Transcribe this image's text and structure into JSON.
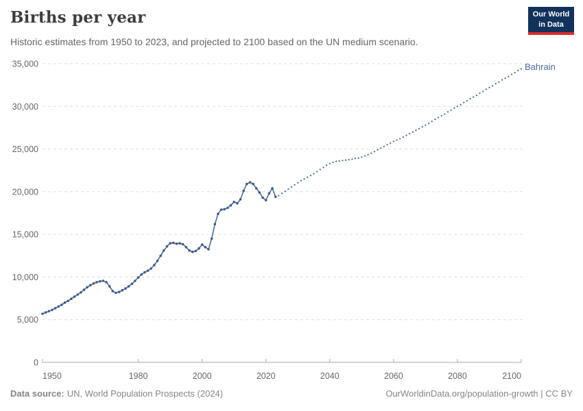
{
  "header": {
    "title": "Births per year",
    "subtitle": "Historic estimates from 1950 to 2023, and projected to 2100 based on the UN medium scenario.",
    "logo": {
      "line1": "Our World",
      "line2": "in Data"
    }
  },
  "footer": {
    "source_label": "Data source:",
    "source_text": "UN, World Population Prospects (2024)",
    "link_text": "OurWorldinData.org/population-growth | CC BY"
  },
  "colors": {
    "line": "#4c6a9c",
    "marker": "#3d5a8f",
    "grid": "#dcdcdc",
    "axis": "#a8a8a8",
    "tick_text": "#666666",
    "logo_navy": "#12325c",
    "logo_red": "#dc2c2e"
  },
  "chart_data": {
    "type": "line",
    "title": "Births per year",
    "entity_label": "Bahrain",
    "xlabel": "",
    "ylabel": "",
    "x_range": [
      1950,
      2100
    ],
    "y_range": [
      0,
      35000
    ],
    "x_ticks": [
      1950,
      1980,
      2000,
      2020,
      2040,
      2060,
      2080,
      2100
    ],
    "y_ticks": [
      0,
      5000,
      10000,
      15000,
      20000,
      25000,
      30000,
      35000
    ],
    "grid": "horizontal dashed",
    "legend": "entity label at end of line",
    "series": [
      {
        "name": "Bahrain — historic estimates (1950–2023)",
        "style": "solid",
        "markers": true,
        "points": [
          [
            1950,
            5700
          ],
          [
            1951,
            5850
          ],
          [
            1952,
            6000
          ],
          [
            1953,
            6150
          ],
          [
            1954,
            6350
          ],
          [
            1955,
            6550
          ],
          [
            1956,
            6750
          ],
          [
            1957,
            7000
          ],
          [
            1958,
            7200
          ],
          [
            1959,
            7450
          ],
          [
            1960,
            7700
          ],
          [
            1961,
            7950
          ],
          [
            1962,
            8200
          ],
          [
            1963,
            8500
          ],
          [
            1964,
            8800
          ],
          [
            1965,
            9050
          ],
          [
            1966,
            9250
          ],
          [
            1967,
            9400
          ],
          [
            1968,
            9500
          ],
          [
            1969,
            9550
          ],
          [
            1970,
            9400
          ],
          [
            1971,
            8900
          ],
          [
            1972,
            8350
          ],
          [
            1973,
            8150
          ],
          [
            1974,
            8250
          ],
          [
            1975,
            8450
          ],
          [
            1976,
            8650
          ],
          [
            1977,
            8900
          ],
          [
            1978,
            9200
          ],
          [
            1979,
            9550
          ],
          [
            1980,
            9950
          ],
          [
            1981,
            10300
          ],
          [
            1982,
            10550
          ],
          [
            1983,
            10750
          ],
          [
            1984,
            11000
          ],
          [
            1985,
            11400
          ],
          [
            1986,
            11900
          ],
          [
            1987,
            12500
          ],
          [
            1988,
            13100
          ],
          [
            1989,
            13600
          ],
          [
            1990,
            13950
          ],
          [
            1991,
            14000
          ],
          [
            1992,
            13900
          ],
          [
            1993,
            13950
          ],
          [
            1994,
            13850
          ],
          [
            1995,
            13500
          ],
          [
            1996,
            13100
          ],
          [
            1997,
            12950
          ],
          [
            1998,
            13050
          ],
          [
            1999,
            13350
          ],
          [
            2000,
            13800
          ],
          [
            2001,
            13500
          ],
          [
            2002,
            13250
          ],
          [
            2003,
            14500
          ],
          [
            2004,
            16200
          ],
          [
            2005,
            17400
          ],
          [
            2006,
            17900
          ],
          [
            2007,
            17950
          ],
          [
            2008,
            18100
          ],
          [
            2009,
            18400
          ],
          [
            2010,
            18800
          ],
          [
            2011,
            18650
          ],
          [
            2012,
            19100
          ],
          [
            2013,
            20100
          ],
          [
            2014,
            20900
          ],
          [
            2015,
            21100
          ],
          [
            2016,
            20900
          ],
          [
            2017,
            20400
          ],
          [
            2018,
            19900
          ],
          [
            2019,
            19300
          ],
          [
            2020,
            19000
          ],
          [
            2021,
            19800
          ],
          [
            2022,
            20400
          ],
          [
            2023,
            19400
          ]
        ]
      },
      {
        "name": "Bahrain — UN medium scenario projection (2023–2100)",
        "style": "dotted",
        "markers": false,
        "points": [
          [
            2023,
            19400
          ],
          [
            2024,
            19550
          ],
          [
            2025,
            19800
          ],
          [
            2026,
            20050
          ],
          [
            2027,
            20300
          ],
          [
            2028,
            20550
          ],
          [
            2029,
            20800
          ],
          [
            2030,
            21050
          ],
          [
            2031,
            21300
          ],
          [
            2032,
            21500
          ],
          [
            2033,
            21700
          ],
          [
            2034,
            21900
          ],
          [
            2035,
            22100
          ],
          [
            2036,
            22350
          ],
          [
            2037,
            22600
          ],
          [
            2038,
            22850
          ],
          [
            2039,
            23100
          ],
          [
            2040,
            23300
          ],
          [
            2041,
            23450
          ],
          [
            2042,
            23550
          ],
          [
            2043,
            23600
          ],
          [
            2044,
            23650
          ],
          [
            2045,
            23700
          ],
          [
            2046,
            23750
          ],
          [
            2047,
            23800
          ],
          [
            2048,
            23900
          ],
          [
            2049,
            23950
          ],
          [
            2050,
            24050
          ],
          [
            2051,
            24200
          ],
          [
            2052,
            24350
          ],
          [
            2053,
            24500
          ],
          [
            2054,
            24700
          ],
          [
            2055,
            24900
          ],
          [
            2056,
            25100
          ],
          [
            2057,
            25300
          ],
          [
            2058,
            25500
          ],
          [
            2059,
            25700
          ],
          [
            2060,
            25900
          ],
          [
            2061,
            26050
          ],
          [
            2062,
            26200
          ],
          [
            2063,
            26400
          ],
          [
            2064,
            26600
          ],
          [
            2065,
            26800
          ],
          [
            2066,
            27000
          ],
          [
            2067,
            27200
          ],
          [
            2068,
            27400
          ],
          [
            2069,
            27600
          ],
          [
            2070,
            27800
          ],
          [
            2071,
            28000
          ],
          [
            2072,
            28250
          ],
          [
            2073,
            28500
          ],
          [
            2074,
            28700
          ],
          [
            2075,
            28900
          ],
          [
            2076,
            29100
          ],
          [
            2077,
            29350
          ],
          [
            2078,
            29550
          ],
          [
            2079,
            29800
          ],
          [
            2080,
            30000
          ],
          [
            2081,
            30200
          ],
          [
            2082,
            30450
          ],
          [
            2083,
            30650
          ],
          [
            2084,
            30900
          ],
          [
            2085,
            31100
          ],
          [
            2086,
            31300
          ],
          [
            2087,
            31550
          ],
          [
            2088,
            31750
          ],
          [
            2089,
            32000
          ],
          [
            2090,
            32200
          ],
          [
            2091,
            32400
          ],
          [
            2092,
            32650
          ],
          [
            2093,
            32850
          ],
          [
            2094,
            33100
          ],
          [
            2095,
            33300
          ],
          [
            2096,
            33500
          ],
          [
            2097,
            33750
          ],
          [
            2098,
            33950
          ],
          [
            2099,
            34200
          ],
          [
            2100,
            34400
          ]
        ]
      }
    ]
  }
}
